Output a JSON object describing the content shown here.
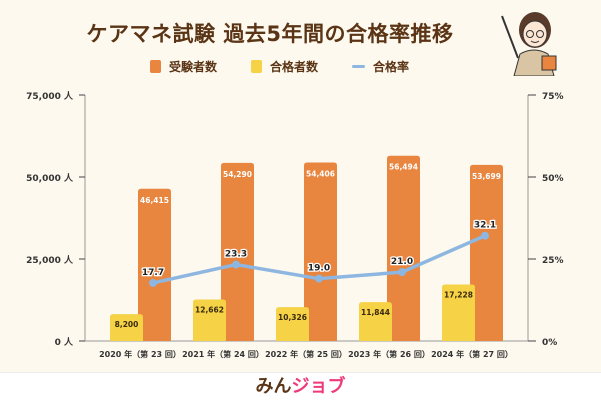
{
  "title": "ケアマネ試験 過去5年間の合格率推移",
  "logo": {
    "part1": "みん",
    "part2": "ジョブ",
    "color1": "#5a3414",
    "color2": "#f0397a"
  },
  "chart_data": {
    "type": "bar+line",
    "title": "ケアマネ試験 過去5年間の合格率推移",
    "categories": [
      "2020 年（第 23 回）",
      "2021 年（第 24 回）",
      "2022 年（第 25 回）",
      "2023 年（第 26 回）",
      "2024 年（第 27 回）"
    ],
    "series": [
      {
        "name": "受験者数",
        "type": "bar",
        "axis": "left",
        "color": "#e8853f",
        "values": [
          46415,
          54290,
          54406,
          56494,
          53699
        ],
        "labels": [
          "46,415",
          "54,290",
          "54,406",
          "56,494",
          "53,699"
        ]
      },
      {
        "name": "合格者数",
        "type": "bar",
        "axis": "left",
        "color": "#f5d246",
        "values": [
          8200,
          12662,
          10326,
          11844,
          17228
        ],
        "labels": [
          "8,200",
          "12,662",
          "10,326",
          "11,844",
          "17,228"
        ]
      },
      {
        "name": "合格率",
        "type": "line",
        "axis": "right",
        "color": "#8db6e0",
        "values": [
          17.7,
          23.3,
          19.0,
          21.0,
          32.1
        ],
        "labels": [
          "17.7",
          "23.3",
          "19.0",
          "21.0",
          "32.1"
        ]
      }
    ],
    "yleft": {
      "ylim": [
        0,
        75000
      ],
      "ticks": [
        "0 人",
        "25,000 人",
        "50,000 人",
        "75,000 人"
      ]
    },
    "yright": {
      "ylim": [
        0,
        75
      ],
      "ticks": [
        "0%",
        "25%",
        "50%",
        "75%"
      ]
    },
    "legend": "top",
    "grid": false
  }
}
